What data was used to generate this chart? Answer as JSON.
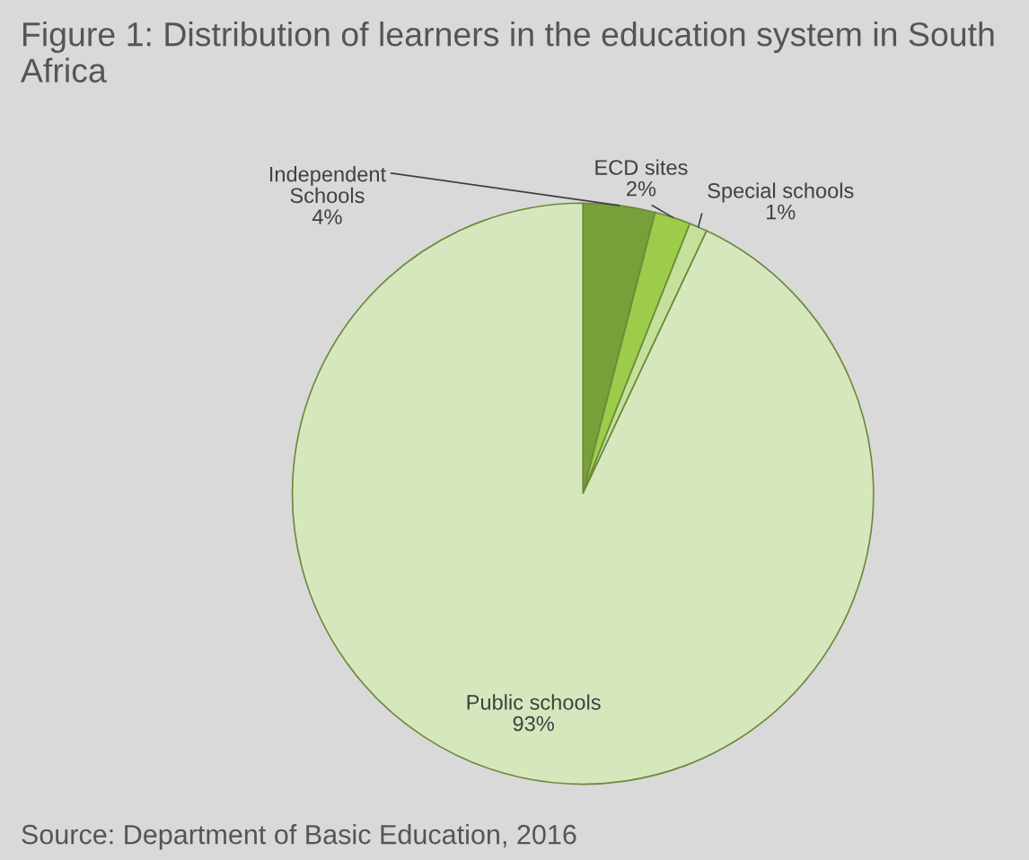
{
  "chart_data": {
    "type": "pie",
    "title": "Figure 1: Distribution of learners in the education system in South Africa",
    "categories": [
      "Independent\nSchools",
      "ECD sites",
      "Special schools",
      "Public schools"
    ],
    "values": [
      4,
      2,
      1,
      93
    ],
    "colors": [
      "#77a03a",
      "#9ccc4a",
      "#c5e09a",
      "#d7e7bd"
    ],
    "value_labels": [
      "4%",
      "2%",
      "1%",
      "93%"
    ],
    "annotations": [
      "Source: Department of Basic Education, 2016"
    ]
  }
}
